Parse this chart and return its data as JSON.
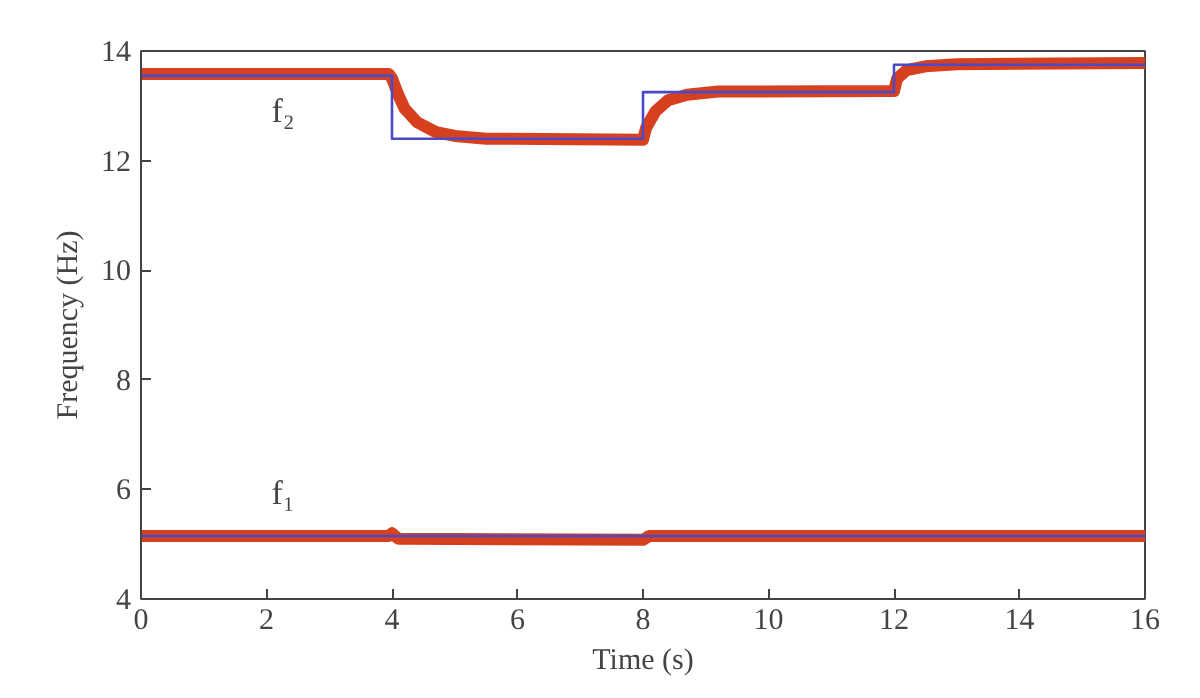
{
  "chart_data": {
    "type": "line",
    "xlabel": "Time (s)",
    "ylabel": "Frequency (Hz)",
    "xlim": [
      0,
      16
    ],
    "ylim": [
      4,
      14
    ],
    "xticks": [
      0,
      2,
      4,
      6,
      8,
      10,
      12,
      14,
      16
    ],
    "yticks": [
      4,
      6,
      8,
      10,
      12,
      14
    ],
    "grid": false,
    "marker": "none",
    "line_style": "solid",
    "series": [
      {
        "name": "f₂",
        "color": "#d7401e",
        "x": [
          0,
          3.95,
          4.0,
          4.1,
          4.2,
          4.4,
          4.7,
          5.0,
          5.5,
          8.0,
          8.05,
          8.2,
          8.4,
          8.7,
          9.2,
          12.0,
          12.05,
          12.2,
          12.5,
          13,
          16
        ],
        "values": [
          13.58,
          13.58,
          13.5,
          13.2,
          12.95,
          12.7,
          12.52,
          12.45,
          12.4,
          12.38,
          12.6,
          12.9,
          13.1,
          13.2,
          13.26,
          13.27,
          13.5,
          13.65,
          13.72,
          13.76,
          13.78
        ]
      },
      {
        "name": "f₁",
        "color": "#d7401e",
        "x": [
          0,
          3.95,
          4.0,
          4.1,
          8.0,
          8.1,
          16
        ],
        "values": [
          5.15,
          5.15,
          5.2,
          5.1,
          5.08,
          5.15,
          5.15
        ]
      },
      {
        "color": "#4a4ac8",
        "x": [
          0,
          4,
          4,
          8,
          8,
          12,
          12,
          16
        ],
        "values": [
          13.55,
          13.55,
          12.4,
          12.4,
          13.25,
          13.25,
          13.75,
          13.75
        ]
      },
      {
        "color": "#4a4ac8",
        "x": [
          0,
          16
        ],
        "values": [
          5.15,
          5.15
        ]
      }
    ]
  }
}
